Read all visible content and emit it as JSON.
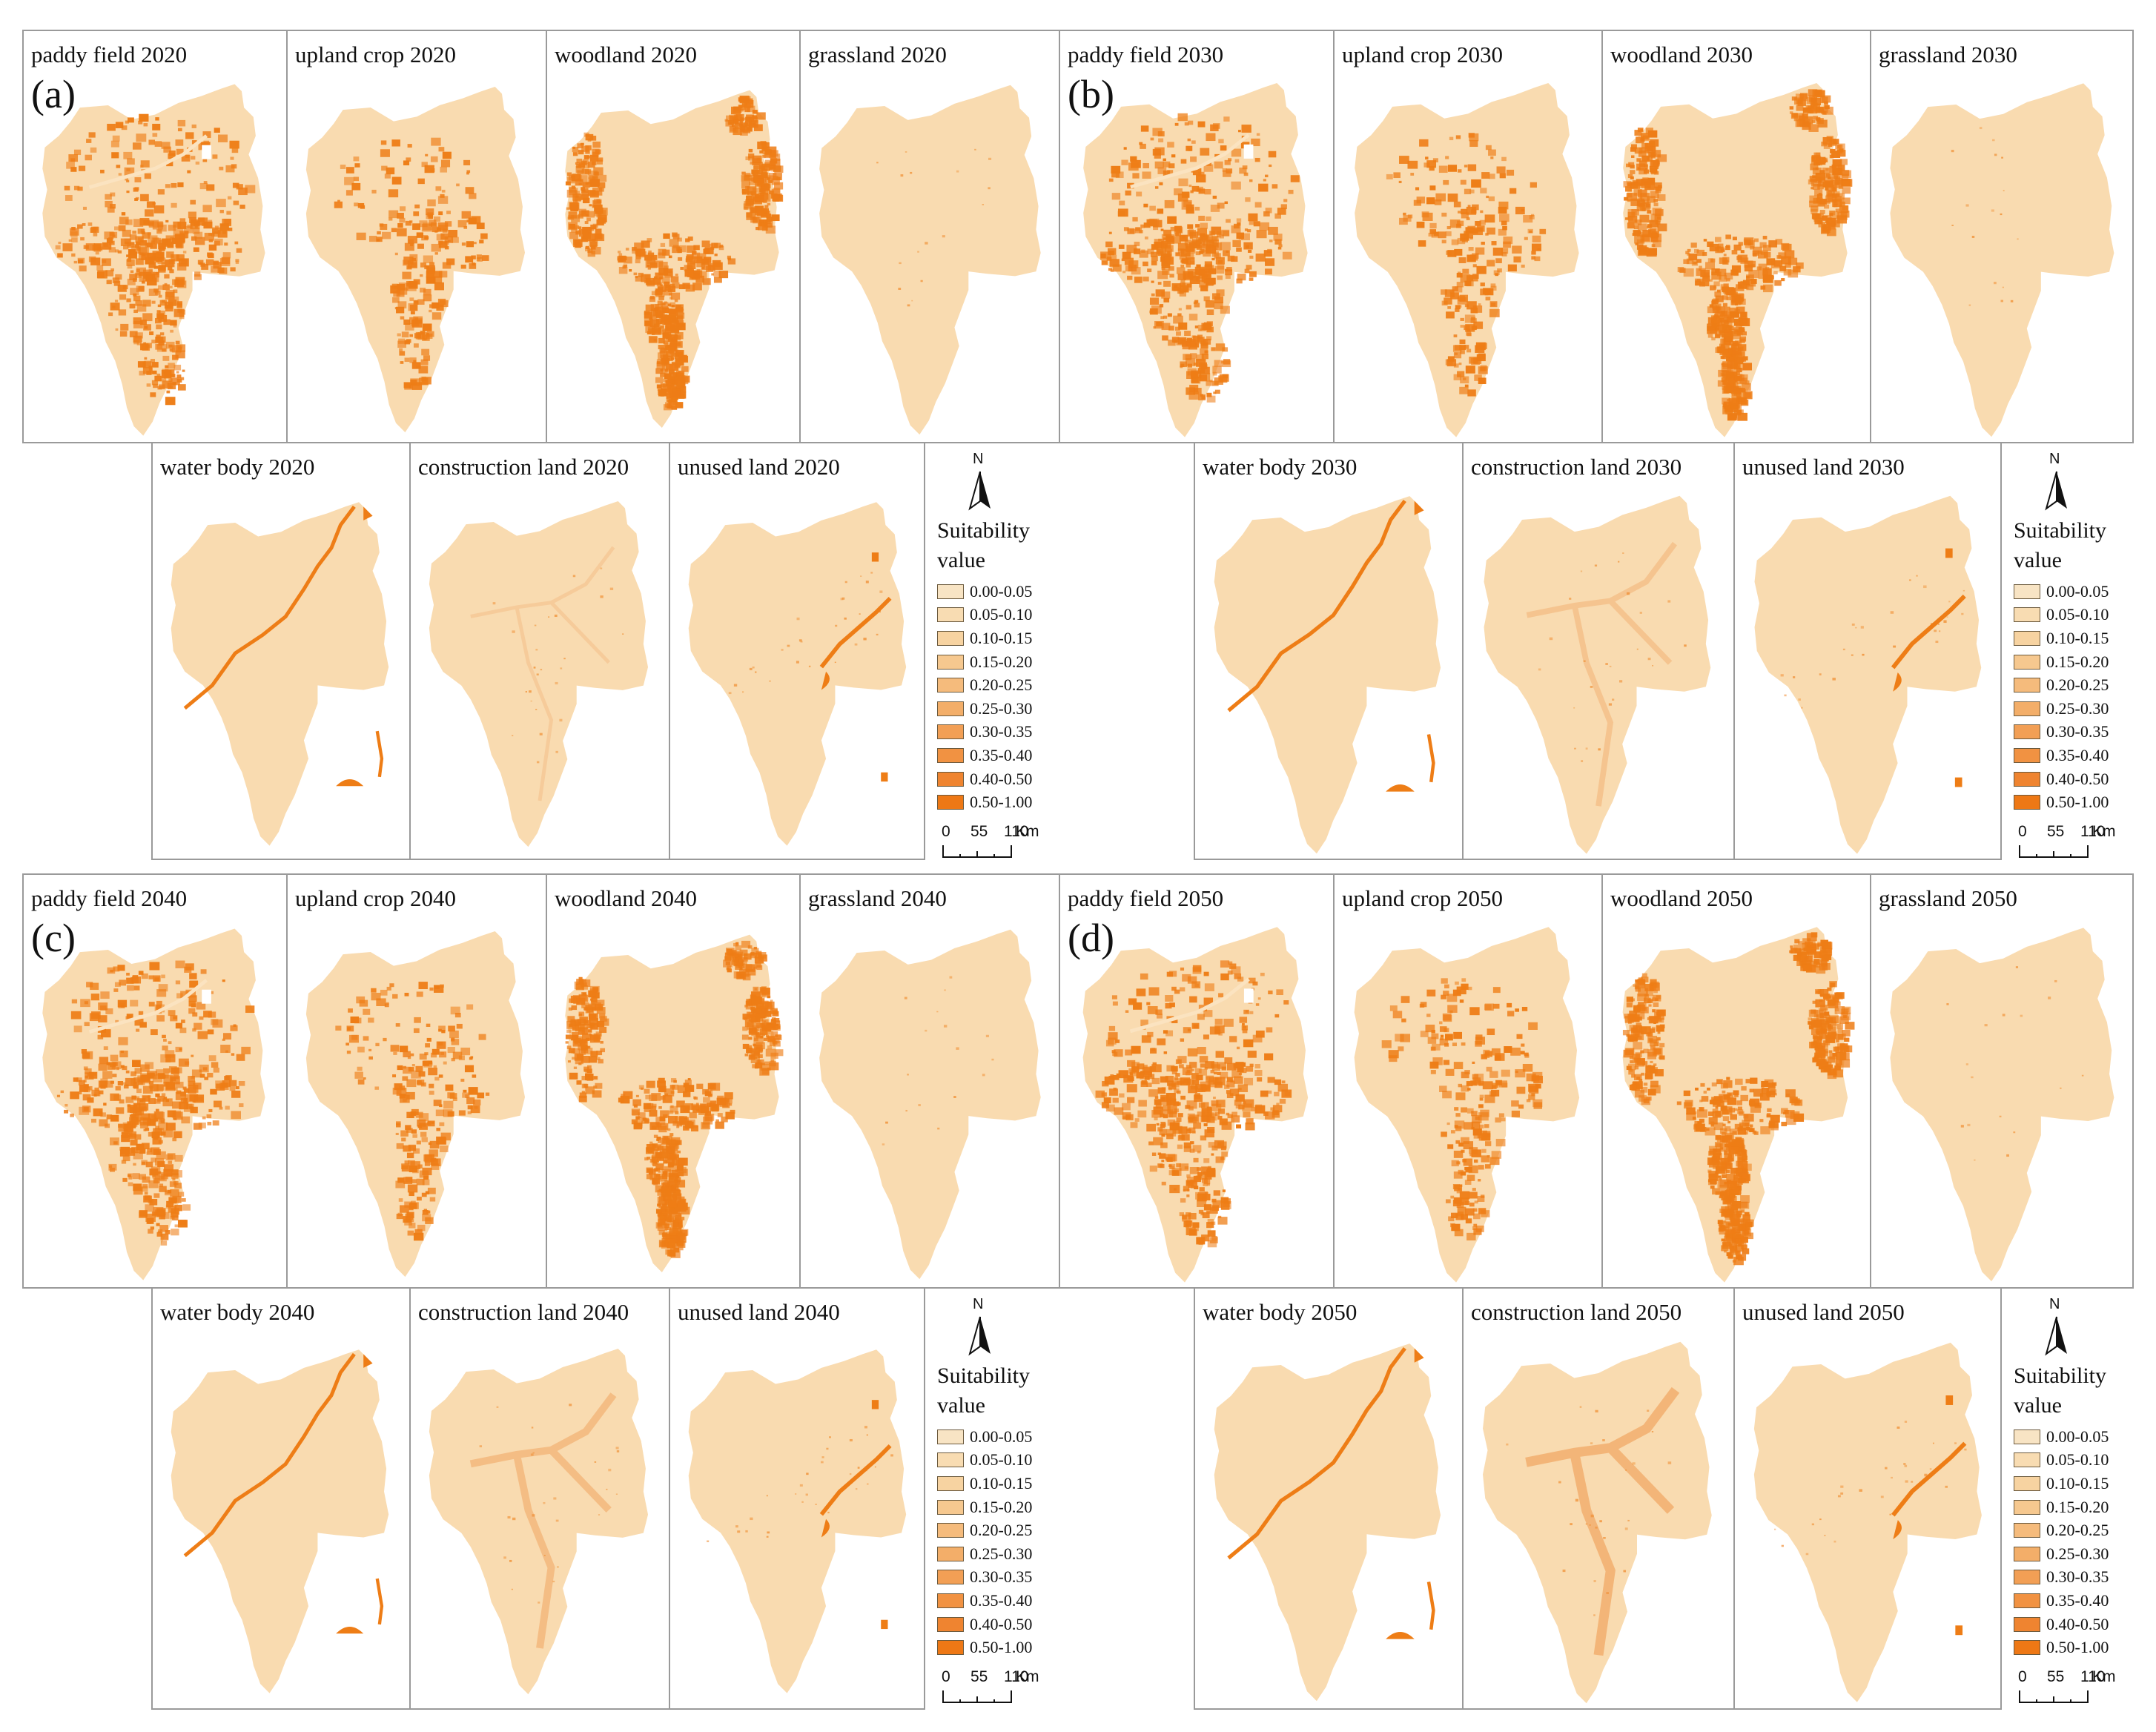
{
  "colors": {
    "background": "#f9dbb0",
    "high": "#ee7d16",
    "legend_ramp": [
      "#f8e4c4",
      "#f8dcb2",
      "#f7d3a1",
      "#f6c88f",
      "#f5bb7c",
      "#f3ae69",
      "#f29f55",
      "#f19242",
      "#ef8430",
      "#ee7815"
    ]
  },
  "figure": {
    "blocks": [
      {
        "label": "(a)",
        "year": "2020",
        "top": [
          "paddy field 2020",
          "upland crop 2020",
          "woodland 2020",
          "grassland 2020"
        ],
        "bottom": [
          "water body 2020",
          "construction land 2020",
          "unused land 2020"
        ]
      },
      {
        "label": "(b)",
        "year": "2030",
        "top": [
          "paddy field 2030",
          "upland crop 2030",
          "woodland 2030",
          "grassland 2030"
        ],
        "bottom": [
          "water body 2030",
          "construction land 2030",
          "unused land 2030"
        ]
      },
      {
        "label": "(c)",
        "year": "2040",
        "top": [
          "paddy field 2040",
          "upland crop 2040",
          "woodland 2040",
          "grassland 2040"
        ],
        "bottom": [
          "water body 2040",
          "construction land 2040",
          "unused land 2040"
        ]
      },
      {
        "label": "(d)",
        "year": "2050",
        "top": [
          "paddy field 2050",
          "upland crop 2050",
          "woodland 2050",
          "grassland 2050"
        ],
        "bottom": [
          "water body 2050",
          "construction land 2050",
          "unused land 2050"
        ]
      }
    ]
  },
  "legend": {
    "north": "N",
    "title_line1": "Suitability",
    "title_line2": "value",
    "classes": [
      "0.00-0.05",
      "0.05-0.10",
      "0.10-0.15",
      "0.15-0.20",
      "0.20-0.25",
      "0.25-0.30",
      "0.30-0.35",
      "0.35-0.40",
      "0.40-0.50",
      "0.50-1.00"
    ],
    "scale_ticks": [
      "0",
      "55",
      "110"
    ],
    "scale_unit": "Km"
  }
}
